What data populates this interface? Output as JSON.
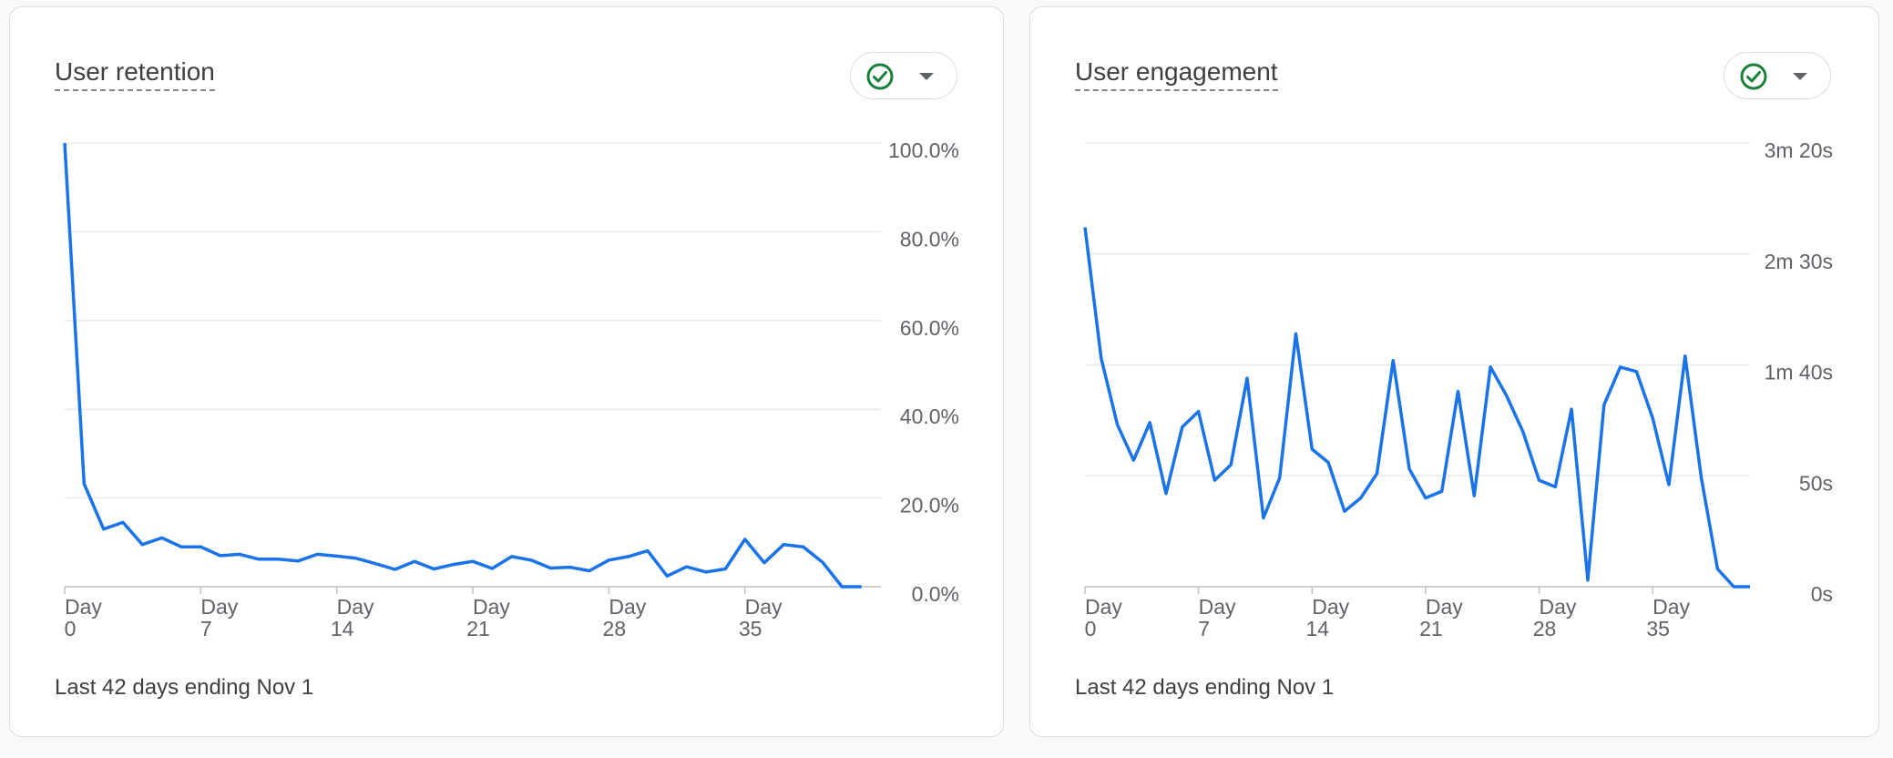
{
  "retention_card": {
    "title": "User retention",
    "footer": "Last 42 days ending Nov 1",
    "status_icon": "check-circle-icon",
    "menu_icon": "caret-down-icon"
  },
  "engagement_card": {
    "title": "User engagement",
    "footer": "Last 42 days ending Nov 1",
    "status_icon": "check-circle-icon",
    "menu_icon": "caret-down-icon"
  },
  "colors": {
    "line": "#1a73e8",
    "check": "#188038",
    "grid": "#e8eaed",
    "axis": "#bdc1c6"
  },
  "chart_data": [
    {
      "type": "line",
      "title": "User retention",
      "xlabel": "",
      "ylabel": "",
      "xlim": [
        0,
        42
      ],
      "ylim": [
        0,
        100
      ],
      "grid": true,
      "x_ticks": [
        {
          "day": 0,
          "line1": "Day",
          "line2": "0"
        },
        {
          "day": 7,
          "line1": "Day",
          "line2": "7"
        },
        {
          "day": 14,
          "line1": "Day",
          "line2": "14"
        },
        {
          "day": 21,
          "line1": "Day",
          "line2": "21"
        },
        {
          "day": 28,
          "line1": "Day",
          "line2": "28"
        },
        {
          "day": 35,
          "line1": "Day",
          "line2": "35"
        }
      ],
      "y_ticks": [
        {
          "value": 100,
          "label": "100.0%"
        },
        {
          "value": 80,
          "label": "80.0%"
        },
        {
          "value": 60,
          "label": "60.0%"
        },
        {
          "value": 40,
          "label": "40.0%"
        },
        {
          "value": 20,
          "label": "20.0%"
        },
        {
          "value": 0,
          "label": "0.0%"
        }
      ],
      "series": [
        {
          "x": [
            0,
            1,
            2,
            3,
            4,
            5,
            6,
            7,
            8,
            9,
            10,
            11,
            12,
            13,
            14,
            15,
            16,
            17,
            18,
            19,
            20,
            21,
            22,
            23,
            24,
            25,
            26,
            27,
            28,
            29,
            30,
            31,
            32,
            33,
            34,
            35,
            36,
            37,
            38,
            39,
            40,
            41
          ],
          "values": [
            100,
            23.2,
            13.0,
            14.5,
            9.5,
            11.0,
            9.0,
            9.0,
            7.0,
            7.3,
            6.2,
            6.2,
            5.8,
            7.3,
            6.9,
            6.4,
            5.2,
            3.9,
            5.7,
            4.0,
            5.0,
            5.7,
            4.1,
            6.8,
            6.0,
            4.2,
            4.4,
            3.6,
            6.0,
            6.8,
            8.1,
            2.4,
            4.5,
            3.3,
            4.0,
            10.7,
            5.4,
            9.5,
            9.0,
            5.5,
            0.0,
            0.0
          ]
        }
      ]
    },
    {
      "type": "line",
      "title": "User engagement",
      "xlabel": "",
      "ylabel": "",
      "xlim": [
        0,
        41
      ],
      "ylim": [
        0,
        200
      ],
      "y_unit": "seconds",
      "grid": true,
      "x_ticks": [
        {
          "day": 0,
          "line1": "Day",
          "line2": "0"
        },
        {
          "day": 7,
          "line1": "Day",
          "line2": "7"
        },
        {
          "day": 14,
          "line1": "Day",
          "line2": "14"
        },
        {
          "day": 21,
          "line1": "Day",
          "line2": "21"
        },
        {
          "day": 28,
          "line1": "Day",
          "line2": "28"
        },
        {
          "day": 35,
          "line1": "Day",
          "line2": "35"
        }
      ],
      "y_ticks": [
        {
          "value": 200,
          "label": "3m 20s"
        },
        {
          "value": 150,
          "label": "2m 30s"
        },
        {
          "value": 100,
          "label": "1m 40s"
        },
        {
          "value": 50,
          "label": "50s"
        },
        {
          "value": 0,
          "label": "0s"
        }
      ],
      "series": [
        {
          "x": [
            0,
            1,
            2,
            3,
            4,
            5,
            6,
            7,
            8,
            9,
            10,
            11,
            12,
            13,
            14,
            15,
            16,
            17,
            18,
            19,
            20,
            21,
            22,
            23,
            24,
            25,
            26,
            27,
            28,
            29,
            30,
            31,
            32,
            33,
            34,
            35,
            36,
            37,
            38,
            39,
            40,
            41
          ],
          "values": [
            162,
            103,
            73,
            57,
            74,
            42,
            72,
            79,
            48,
            55,
            94,
            31,
            49,
            114,
            62,
            56,
            34,
            40,
            51,
            102,
            53,
            40,
            43,
            88,
            41,
            99,
            86,
            70,
            48,
            45,
            80,
            3,
            82,
            99,
            97,
            76,
            46,
            104,
            49,
            8,
            0,
            0
          ]
        }
      ]
    }
  ]
}
